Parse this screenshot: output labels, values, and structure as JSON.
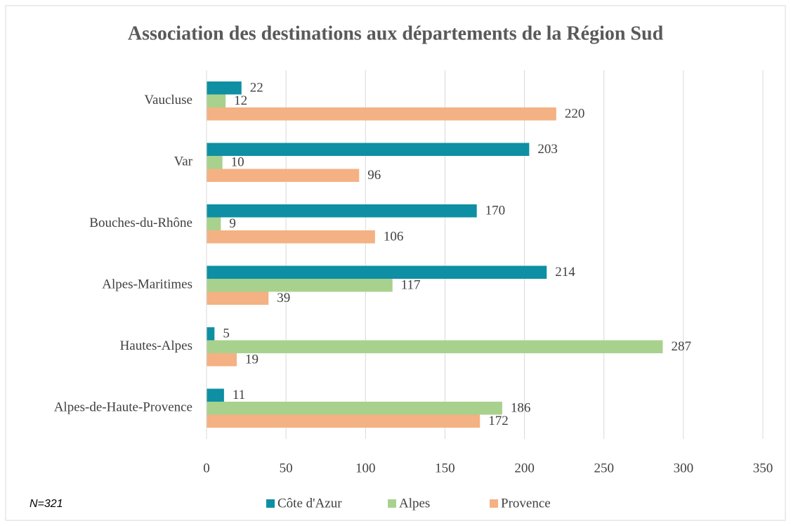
{
  "chart_data": {
    "type": "hbar",
    "title": "Association des destinations aux départements de la Région Sud",
    "note": "N=321",
    "categories": [
      "Alpes-de-Haute-Provence",
      "Hautes-Alpes",
      "Alpes-Maritimes",
      "Bouches-du-Rhône",
      "Var",
      "Vaucluse"
    ],
    "series": [
      {
        "name": "Côte d'Azur",
        "color": "#0e8fa3",
        "values": [
          11,
          5,
          214,
          170,
          203,
          22
        ]
      },
      {
        "name": "Alpes",
        "color": "#a9d18e",
        "values": [
          186,
          287,
          117,
          9,
          10,
          12
        ]
      },
      {
        "name": "Provence",
        "color": "#f4b183",
        "values": [
          172,
          19,
          39,
          106,
          96,
          220
        ]
      }
    ],
    "xlim": [
      0,
      350
    ],
    "xticks": [
      0,
      50,
      100,
      150,
      200,
      250,
      300,
      350
    ],
    "grid": true,
    "legend": "bottom"
  }
}
